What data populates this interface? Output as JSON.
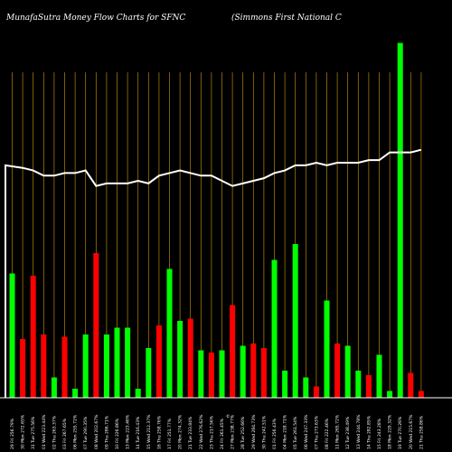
{
  "chart_data": {
    "type": "bar",
    "title": "MunafaSutra  Money Flow  Charts for SFNC",
    "subtitle": "(Simmons First National C",
    "axis_marker": "©",
    "colors": {
      "background": "#000000",
      "up": "#00ff00",
      "down": "#ff0000",
      "line": "#ffffff",
      "grid": "#b8860b",
      "axis": "#ffffff"
    },
    "grid": true,
    "series": [
      {
        "type": "bar",
        "values": [
          55,
          26,
          54,
          28,
          9,
          27,
          4,
          28,
          64,
          28,
          31,
          31,
          4,
          22,
          32,
          57,
          34,
          35,
          21,
          20,
          21,
          41,
          23,
          24,
          22,
          61,
          12,
          68,
          9,
          5,
          43,
          24,
          23,
          12,
          10,
          19,
          3,
          157,
          11,
          3
        ],
        "directions": [
          "up",
          "down",
          "down",
          "down",
          "up",
          "down",
          "up",
          "up",
          "down",
          "up",
          "up",
          "up",
          "up",
          "up",
          "down",
          "up",
          "up",
          "down",
          "up",
          "down",
          "up",
          "down",
          "up",
          "down",
          "down",
          "up",
          "up",
          "up",
          "up",
          "down",
          "up",
          "down",
          "up",
          "up",
          "down",
          "up",
          "up",
          "up",
          "down",
          "down"
        ]
      },
      {
        "type": "line",
        "values": [
          90,
          89,
          88,
          86,
          86,
          87,
          87,
          88,
          82,
          83,
          83,
          83,
          84,
          83,
          86,
          87,
          88,
          87,
          86,
          86,
          84,
          82,
          83,
          84,
          85,
          87,
          88,
          90,
          90,
          91,
          90,
          91,
          91,
          91,
          92,
          92,
          95,
          95,
          95,
          96
        ]
      }
    ],
    "categories": [
      "29 Fri 256.79%",
      "30 Mon 272.65%",
      "31 Tue 275.56%",
      "01 Wed 223.44%",
      "02 Thu 263.37%",
      "03 Fri 267.65%",
      "06 Mon 255.72%",
      "07 Tue 290.35%",
      "08 Wed 202.67%",
      "09 Thu 286.71%",
      "10 Fri 226.86%",
      "13 Mon 223.46%",
      "14 Tue 216.43%",
      "15 Wed 212.37%",
      "16 Thu 258.76%",
      "17 Fri 251.77%",
      "20 Mon 274.32%",
      "21 Tue 233.84%",
      "22 Wed 276.62%",
      "23 Thu 217.56%",
      "24 Fri 261.45%",
      "27 Mon 238.77%",
      "28 Tue 252.66%",
      "29 Wed 284.73%",
      "30 Thu 242.51%",
      "01 Fri 256.43%",
      "04 Mon 218.71%",
      "05 Tue 261.54%",
      "06 Wed 247.33%",
      "07 Thu 273.63%",
      "08 Fri 222.46%",
      "11 Mon 265.72%",
      "12 Tue 238.49%",
      "13 Wed 244.78%",
      "14 Thu 282.85%",
      "15 Fri 243.28%",
      "18 Mon 229.32%",
      "19 Tue 270.26%",
      "20 Wed 215.67%",
      "21 Thu 258.86%"
    ],
    "bar_ylim": [
      0,
      160
    ],
    "line_ylim": [
      0,
      140
    ]
  }
}
